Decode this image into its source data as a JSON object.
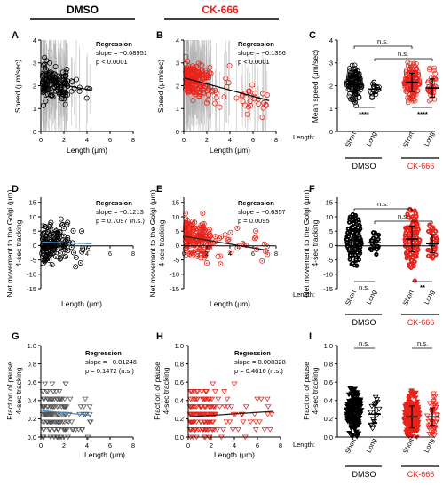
{
  "header": {
    "dmso": "DMSO",
    "ck": "CK-666"
  },
  "colors": {
    "dmso": "#000000",
    "ck": "#e8231a",
    "fit_dmso": "#3f8fcf",
    "fit_ck": "#222222",
    "range": "#b4b4b4"
  },
  "panel_letters": [
    "A",
    "B",
    "C",
    "D",
    "E",
    "F",
    "G",
    "H",
    "I"
  ],
  "axes": {
    "length_label": "Length (μm)",
    "length_ticks": [
      "0",
      "2",
      "4",
      "6",
      "8"
    ],
    "speed_label": "Speed (μm/sec)",
    "speed_ticks": [
      "0",
      "1",
      "2",
      "3",
      "4"
    ],
    "mean_speed_label": "Mean speed (μm/sec)",
    "net_label_1": "Net movement to the Golgi (μm)",
    "net_label_2": "4-sec tracking",
    "net_ticks": [
      "-15",
      "-10",
      "-5",
      "0",
      "5",
      "10",
      "15"
    ],
    "pause_label_1": "Fraction of pause",
    "pause_label_2": "4-sec tracking",
    "pause_ticks": [
      "0.0",
      "0.2",
      "0.4",
      "0.6",
      "0.8",
      "1.0"
    ],
    "group_row_label": "Length:",
    "group_short": "Short",
    "group_long": "Long"
  },
  "regressions": {
    "A": {
      "title": "Regression",
      "slope": "slope = −0.08951",
      "p": "p < 0.0001"
    },
    "B": {
      "title": "Regression",
      "slope": "slope = −0.1356",
      "p": "p < 0.0001"
    },
    "D": {
      "title": "Regression",
      "slope": "slope = −0.1213",
      "p": "p = 0.7097 (n.s.)"
    },
    "E": {
      "title": "Regression",
      "slope": "slope = −0.6357",
      "p": "p = 0.0095"
    },
    "G": {
      "title": "Regression",
      "slope": "slope = −0.01246",
      "p": "p = 0.1472 (n.s.)"
    },
    "H": {
      "title": "Regression",
      "slope": "slope = 0.008328",
      "p": "p = 0.4616 (n.s.)"
    }
  },
  "significance": {
    "C": {
      "top": "n.s.",
      "mid": "n.s.",
      "dmso": "****",
      "ck": "****"
    },
    "F": {
      "top": "n.s.",
      "mid": "n.s.",
      "dmso": "n.s.",
      "ck": "**"
    },
    "I": {
      "dmso": "n.s.",
      "ck": "n.s."
    }
  },
  "chart_data": [
    {
      "panel": "A",
      "type": "scatter",
      "xlabel": "Length (μm)",
      "ylabel": "Speed (μm/sec)",
      "xlim": [
        0,
        8
      ],
      "ylim": [
        0,
        4
      ],
      "fit": {
        "slope": -0.08951,
        "intercept": 2.2,
        "x_range": [
          0.1,
          4.4
        ]
      }
    },
    {
      "panel": "B",
      "type": "scatter",
      "xlabel": "Length (μm)",
      "ylabel": "Speed (μm/sec)",
      "xlim": [
        0,
        8
      ],
      "ylim": [
        0,
        4
      ],
      "fit": {
        "slope": -0.1356,
        "intercept": 2.35,
        "x_range": [
          0.1,
          7.4
        ]
      }
    },
    {
      "panel": "C",
      "type": "scatter",
      "ylabel": "Mean speed (μm/sec)",
      "ylim": [
        0,
        4
      ],
      "categories": [
        "Short",
        "Long",
        "Short",
        "Long"
      ],
      "groups": [
        "DMSO",
        "DMSO",
        "CK-666",
        "CK-666"
      ],
      "means": [
        2.05,
        1.85,
        2.15,
        1.9
      ],
      "sd": [
        0.35,
        0.2,
        0.4,
        0.4
      ]
    },
    {
      "panel": "D",
      "type": "scatter",
      "xlabel": "Length (μm)",
      "ylim": [
        -15,
        15
      ],
      "xlim": [
        0,
        8
      ],
      "fit": {
        "slope": -0.1213,
        "intercept": 0.3,
        "x_range": [
          0.1,
          4.4
        ]
      }
    },
    {
      "panel": "E",
      "type": "scatter",
      "xlabel": "Length (μm)",
      "ylim": [
        -15,
        15
      ],
      "xlim": [
        0,
        8
      ],
      "fit": {
        "slope": -0.6357,
        "intercept": 2.2,
        "x_range": [
          0.1,
          7.4
        ]
      }
    },
    {
      "panel": "F",
      "type": "scatter",
      "ylim": [
        -15,
        15
      ],
      "categories": [
        "Short",
        "Long",
        "Short",
        "Long"
      ],
      "groups": [
        "DMSO",
        "DMSO",
        "CK-666",
        "CK-666"
      ],
      "means": [
        1.0,
        0.1,
        1.3,
        -0.2
      ],
      "sd": [
        3.5,
        2.5,
        4.2,
        3.0
      ]
    },
    {
      "panel": "G",
      "type": "scatter",
      "xlabel": "Length (μm)",
      "ylim": [
        0,
        1
      ],
      "xlim": [
        0,
        8
      ],
      "fit": {
        "slope": -0.01246,
        "intercept": 0.29,
        "x_range": [
          0.1,
          4.4
        ]
      }
    },
    {
      "panel": "H",
      "type": "scatter",
      "xlabel": "Length (μm)",
      "ylim": [
        0,
        1
      ],
      "xlim": [
        0,
        8
      ],
      "fit": {
        "slope": 0.008328,
        "intercept": 0.22,
        "x_range": [
          0.1,
          7.4
        ]
      }
    },
    {
      "panel": "I",
      "type": "scatter",
      "ylim": [
        0,
        1
      ],
      "categories": [
        "Short",
        "Long",
        "Short",
        "Long"
      ],
      "groups": [
        "DMSO",
        "DMSO",
        "CK-666",
        "CK-666"
      ],
      "means": [
        0.28,
        0.25,
        0.22,
        0.22
      ],
      "sd": [
        0.12,
        0.1,
        0.12,
        0.1
      ]
    }
  ]
}
